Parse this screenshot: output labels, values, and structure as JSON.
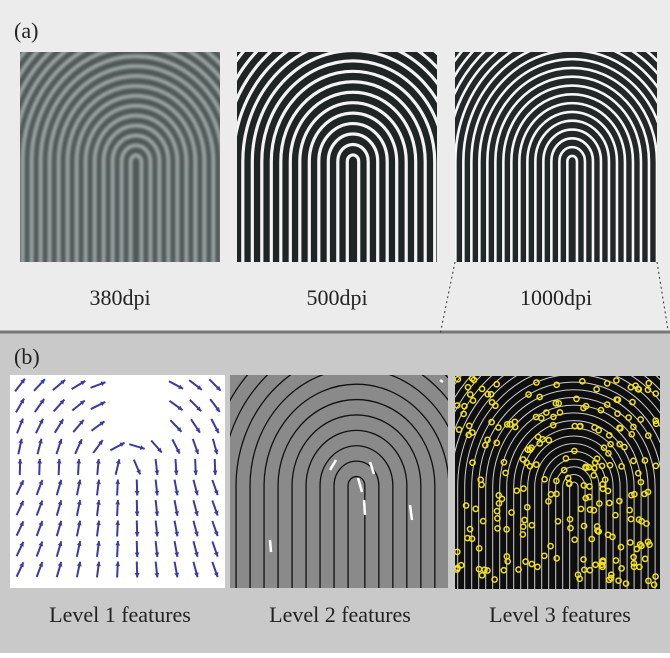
{
  "panel_a": {
    "label": "(a)",
    "captions": [
      "380dpi",
      "500dpi",
      "1000dpi"
    ]
  },
  "panel_b": {
    "label": "(b)",
    "captions": [
      "Level 1 features",
      "Level 2 features",
      "Level 3 features"
    ]
  }
}
